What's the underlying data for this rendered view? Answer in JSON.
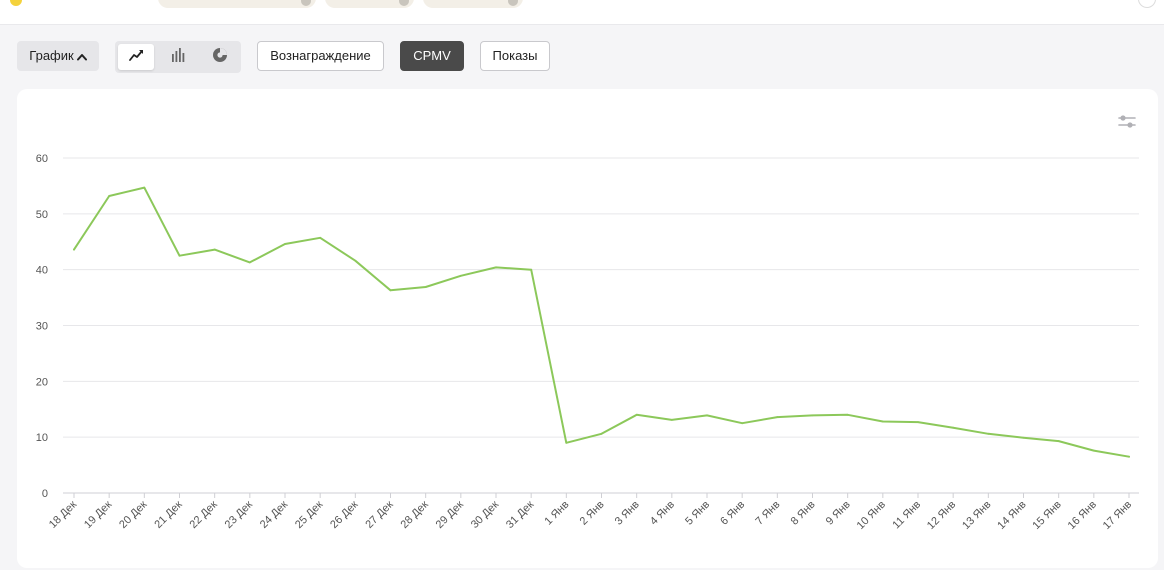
{
  "toolbar": {
    "chart_toggle_label": "График",
    "view_modes": [
      "line-chart-icon",
      "bar-chart-icon",
      "pie-chart-icon"
    ],
    "active_view": "line",
    "metric_buttons": [
      {
        "label": "Вознаграждение",
        "active": false
      },
      {
        "label": "CPMV",
        "active": true
      },
      {
        "label": "Показы",
        "active": false
      }
    ]
  },
  "chart_data": {
    "type": "line",
    "title": "",
    "xlabel": "",
    "ylabel": "",
    "ylim": [
      0,
      60
    ],
    "yticks": [
      0,
      10,
      20,
      30,
      40,
      50,
      60
    ],
    "grid": true,
    "color": "#8cc85a",
    "categories": [
      "18 Дек",
      "19 Дек",
      "20 Дек",
      "21 Дек",
      "22 Дек",
      "23 Дек",
      "24 Дек",
      "25 Дек",
      "26 Дек",
      "27 Дек",
      "28 Дек",
      "29 Дек",
      "30 Дек",
      "31 Дек",
      "1 Янв",
      "2 Янв",
      "3 Янв",
      "4 Янв",
      "5 Янв",
      "6 Янв",
      "7 Янв",
      "8 Янв",
      "9 Янв",
      "10 Янв",
      "11 Янв",
      "12 Янв",
      "13 Янв",
      "14 Янв",
      "15 Янв",
      "16 Янв",
      "17 Янв"
    ],
    "series": [
      {
        "values": [
          43.6,
          53.2,
          54.7,
          42.5,
          43.6,
          41.3,
          44.6,
          45.7,
          41.6,
          36.3,
          36.9,
          38.9,
          40.4,
          40.0,
          9.0,
          10.6,
          14.0,
          13.1,
          13.9,
          12.5,
          13.6,
          13.9,
          14.0,
          12.8,
          12.7,
          11.7,
          10.6,
          9.9,
          9.3,
          7.6,
          6.5
        ]
      }
    ]
  }
}
